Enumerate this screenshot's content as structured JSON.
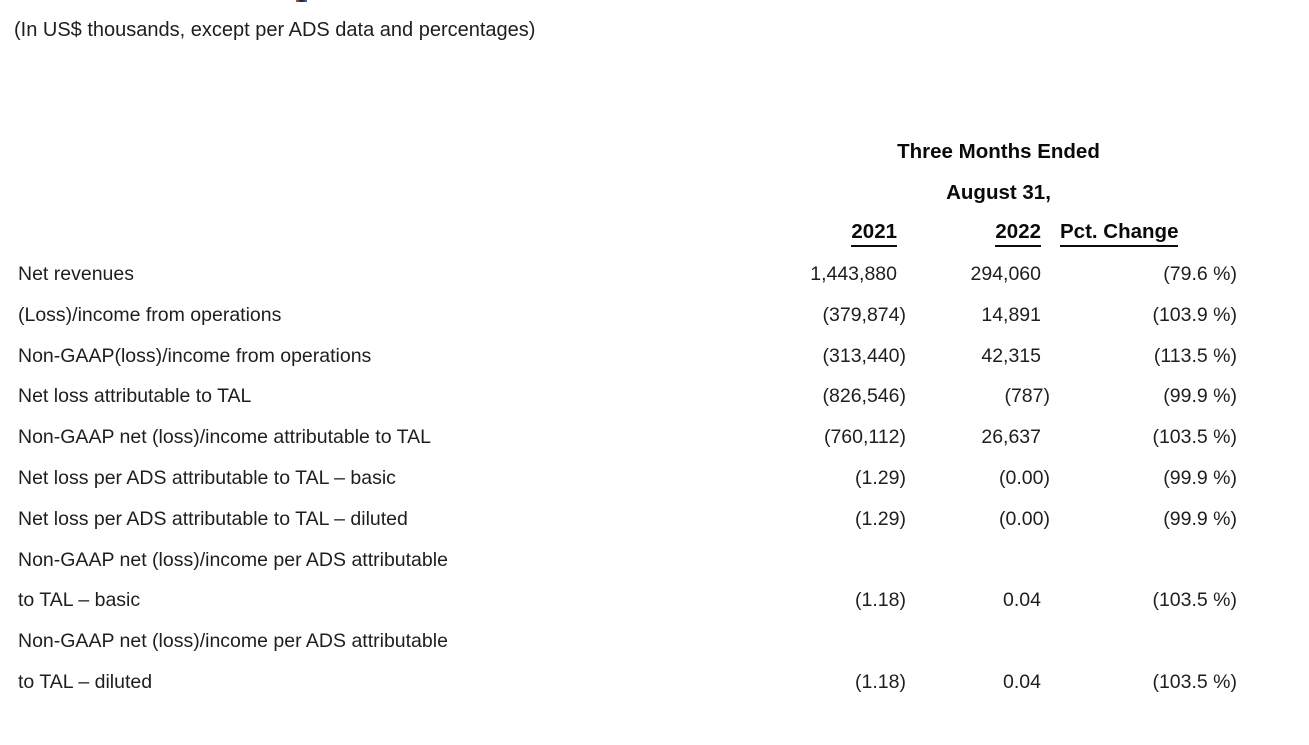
{
  "caption": "(In US$ thousands, except per ADS data and percentages)",
  "colors": {
    "text": "#211d1e",
    "heading": "#0b0a0a"
  },
  "table": {
    "period_line1": "Three Months Ended",
    "period_line2": "August 31,",
    "columns": [
      "2021",
      "2022",
      "Pct. Change"
    ],
    "rows": [
      {
        "label_lines": [
          "Net revenues"
        ],
        "v2021": "1,443,880",
        "v2022": "294,060",
        "pct": "(79.6 %)"
      },
      {
        "label_lines": [
          "(Loss)/income from operations"
        ],
        "v2021": "(379,874)",
        "v2022": "14,891",
        "pct": "(103.9 %)"
      },
      {
        "label_lines": [
          "Non-GAAP(loss)/income from operations"
        ],
        "v2021": "(313,440)",
        "v2022": "42,315",
        "pct": "(113.5 %)"
      },
      {
        "label_lines": [
          "Net loss attributable to TAL"
        ],
        "v2021": "(826,546)",
        "v2022": "(787)",
        "pct": "(99.9 %)"
      },
      {
        "label_lines": [
          "Non-GAAP net (loss)/income attributable to TAL"
        ],
        "v2021": "(760,112)",
        "v2022": "26,637",
        "pct": "(103.5 %)"
      },
      {
        "label_lines": [
          "Net loss per ADS attributable to TAL – basic"
        ],
        "v2021": "(1.29)",
        "v2022": "(0.00)",
        "pct": "(99.9 %)"
      },
      {
        "label_lines": [
          "Net loss per ADS attributable to TAL – diluted"
        ],
        "v2021": "(1.29)",
        "v2022": "(0.00)",
        "pct": "(99.9 %)"
      },
      {
        "label_lines": [
          "Non-GAAP net (loss)/income per ADS attributable",
          "to TAL – basic"
        ],
        "v2021": "(1.18)",
        "v2022": "0.04",
        "pct": "(103.5 %)"
      },
      {
        "label_lines": [
          "Non-GAAP net (loss)/income per ADS attributable",
          "to TAL – diluted"
        ],
        "v2021": "(1.18)",
        "v2022": "0.04",
        "pct": "(103.5 %)"
      }
    ]
  }
}
